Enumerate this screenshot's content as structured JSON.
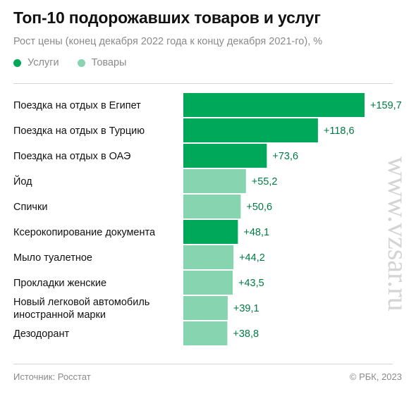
{
  "header": {
    "title": "Топ-10 подорожавших товаров и услуг",
    "subtitle": "Рост цены (конец декабря 2022 года к концу декабря 2021-го), %"
  },
  "legend": [
    {
      "label": "Услуги",
      "color": "#00a85a"
    },
    {
      "label": "Товары",
      "color": "#86d4b0"
    }
  ],
  "footer": {
    "source": "Источник: Росстат",
    "copyright": "© РБК, 2023"
  },
  "watermark": "www.vzsar.ru",
  "chart_data": {
    "type": "bar",
    "orientation": "horizontal",
    "title": "Топ-10 подорожавших товаров и услуг",
    "subtitle": "Рост цены (конец декабря 2022 года к концу декабря 2021-го), %",
    "categories": [
      [
        "Поездка на отдых в Египет"
      ],
      [
        "Поездка на отдых в Турцию"
      ],
      [
        "Поездка на отдых в ОАЭ"
      ],
      [
        "Йод"
      ],
      [
        "Спички"
      ],
      [
        "Ксерокопирование документа"
      ],
      [
        "Мыло туалетное"
      ],
      [
        "Прокладки женские"
      ],
      [
        "Новый легковой автомобиль",
        "иностранной марки"
      ],
      [
        "Дезодорант"
      ]
    ],
    "values": [
      159.7,
      118.6,
      73.6,
      55.2,
      50.6,
      48.1,
      44.2,
      43.5,
      39.1,
      38.8
    ],
    "value_labels": [
      "+159,7",
      "+118,6",
      "+73,6",
      "+55,2",
      "+50,6",
      "+48,1",
      "+44,2",
      "+43,5",
      "+39,1",
      "+38,8"
    ],
    "groups": [
      "Услуги",
      "Услуги",
      "Услуги",
      "Товары",
      "Товары",
      "Услуги",
      "Товары",
      "Товары",
      "Товары",
      "Товары"
    ],
    "colors": {
      "Услуги": "#00a85a",
      "Товары": "#86d4b0"
    },
    "value_label_color": "#007a45",
    "grid": false,
    "legend_position": "top-left"
  }
}
